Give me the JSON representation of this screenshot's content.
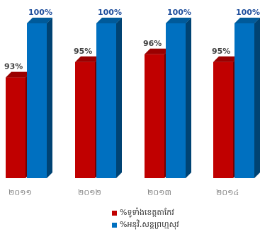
{
  "chart_data": {
    "type": "bar",
    "categories": [
      "២០១១",
      "២០១២",
      "២០១៣",
      "២០១៤"
    ],
    "series": [
      {
        "name": "%ទូទាំងខេត្តតាកែវ",
        "color": "#c00000",
        "values": [
          93,
          95,
          96,
          95
        ],
        "labels": [
          "93%",
          "95%",
          "96%",
          "95%"
        ]
      },
      {
        "name": "%អនុវិ.សន្តព្រហ្មសុវ",
        "color": "#0070c0",
        "values": [
          100,
          100,
          100,
          100
        ],
        "labels": [
          "100%",
          "100%",
          "100%",
          "100%"
        ]
      }
    ],
    "ylim": [
      80,
      100
    ],
    "grid": false,
    "legend": "bottom",
    "style": "3d-column"
  }
}
